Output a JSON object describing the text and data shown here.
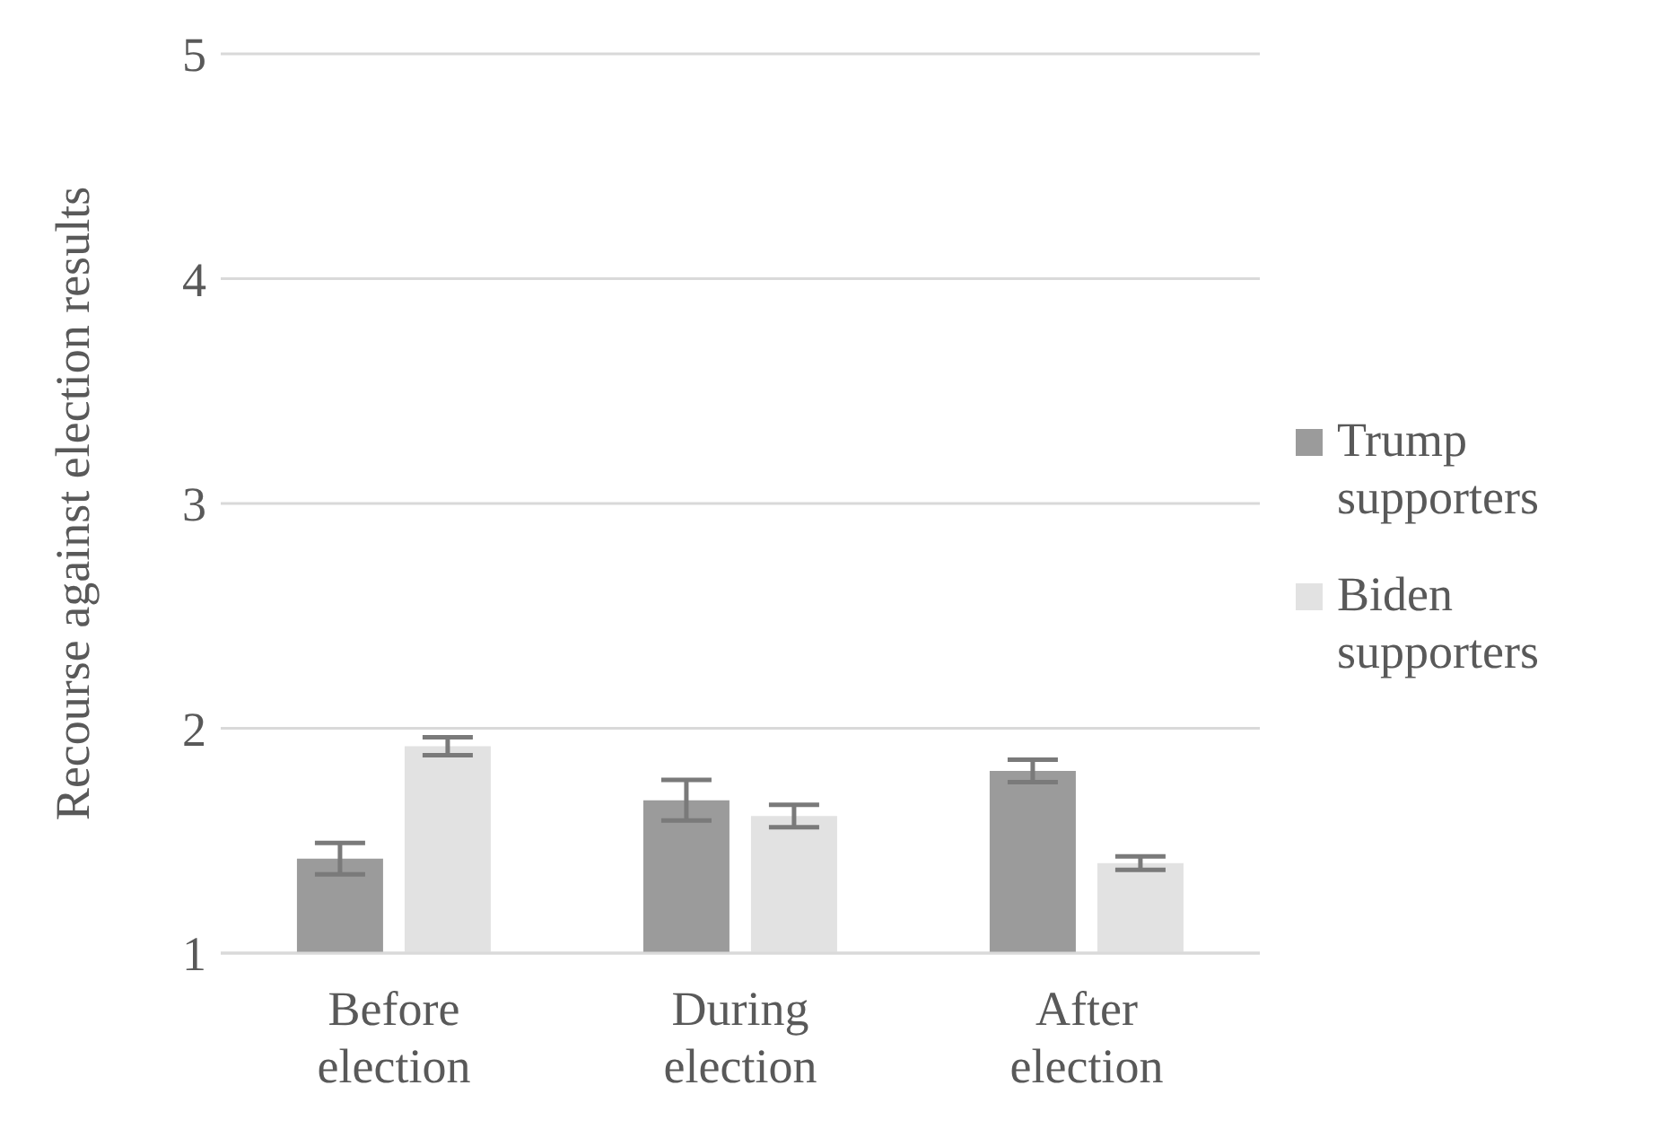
{
  "chart_data": {
    "type": "bar",
    "ylabel": "Recourse against election results",
    "categories": [
      "Before election",
      "During election",
      "After election"
    ],
    "series": [
      {
        "name": "Trump supporters",
        "color": "#9b9b9b",
        "values": [
          1.42,
          1.68,
          1.81
        ],
        "errors": [
          0.07,
          0.09,
          0.05
        ]
      },
      {
        "name": "Biden supporters",
        "color": "#e2e2e2",
        "values": [
          1.92,
          1.61,
          1.4
        ],
        "errors": [
          0.04,
          0.05,
          0.03
        ]
      }
    ],
    "ylim": [
      1,
      5
    ],
    "yticks": [
      1,
      2,
      3,
      4,
      5
    ],
    "grid": "y",
    "legend": "right"
  }
}
